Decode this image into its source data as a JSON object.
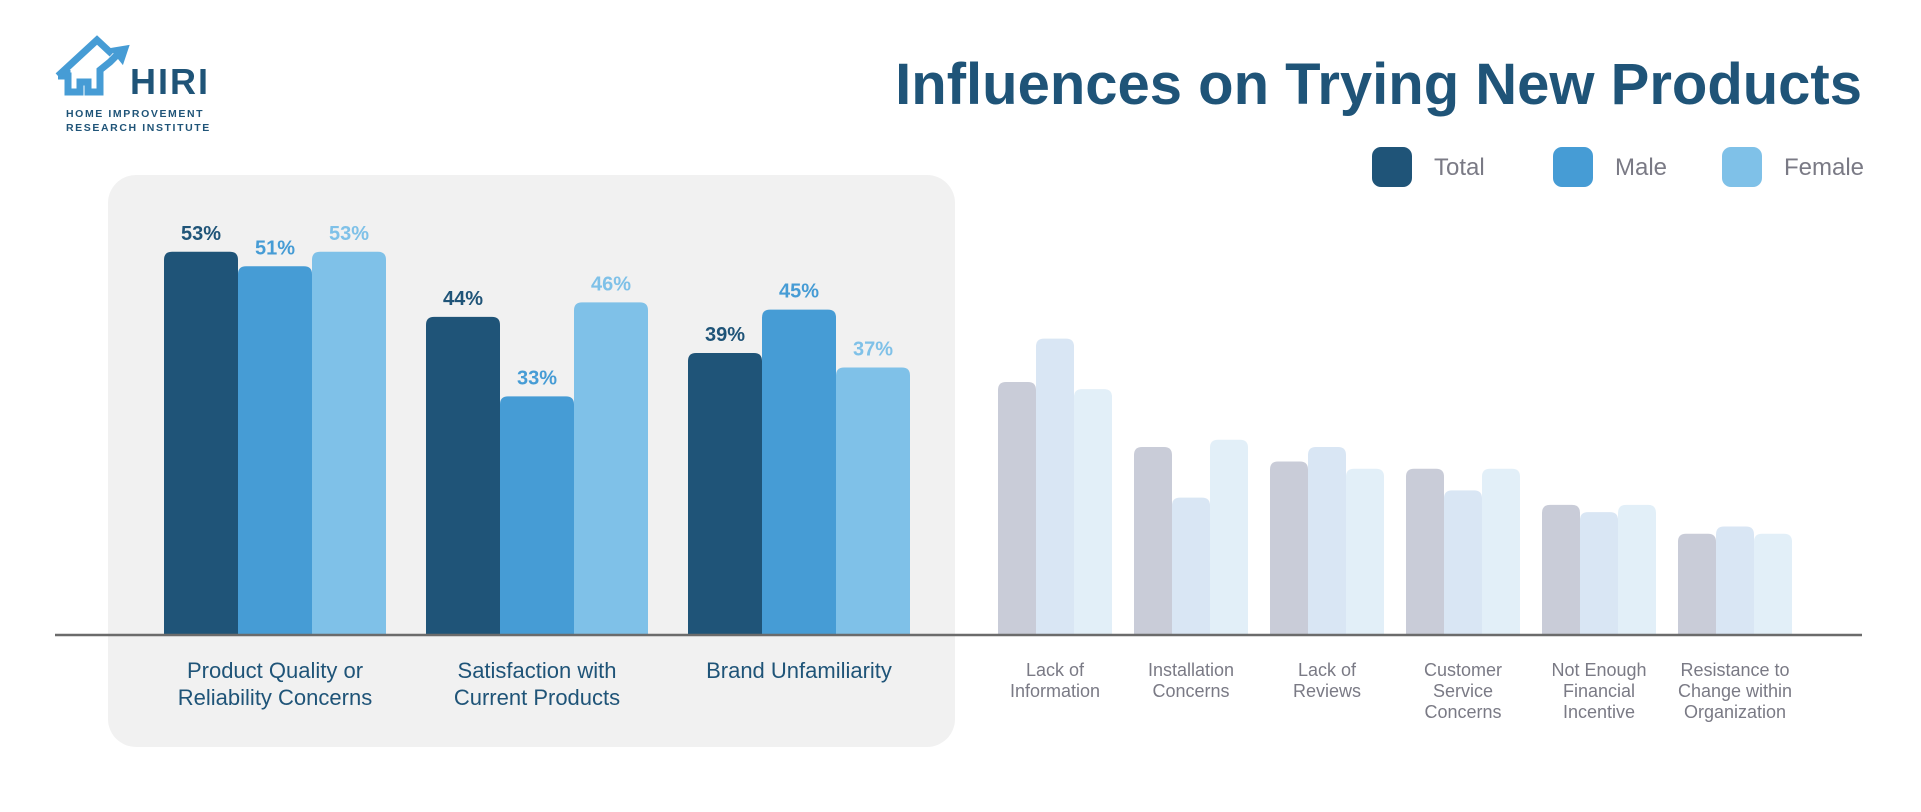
{
  "logo": {
    "name": "HIRI",
    "line1": "HOME IMPROVEMENT",
    "line2": "RESEARCH INSTITUTE"
  },
  "chart_data": {
    "type": "bar",
    "title": "Influences on Trying New Products",
    "xlabel": "",
    "ylabel": "",
    "ylim": [
      0,
      60
    ],
    "grid": false,
    "legend_position": "top-right",
    "categories": [
      [
        "Product Quality or",
        "Reliability Concerns"
      ],
      [
        "Satisfaction with",
        "Current Products"
      ],
      [
        "Brand Unfamiliarity"
      ],
      [
        "Lack of",
        "Information"
      ],
      [
        "Installation",
        "Concerns"
      ],
      [
        "Lack of",
        "Reviews"
      ],
      [
        "Customer",
        "Service",
        "Concerns"
      ],
      [
        "Not Enough",
        "Financial",
        "Incentive"
      ],
      [
        "Resistance to",
        "Change within",
        "Organization"
      ]
    ],
    "highlighted_count": 3,
    "series": [
      {
        "name": "Total",
        "color": "#1f5478",
        "faded_color": "#c9ccd8",
        "values": [
          53,
          44,
          39,
          35,
          26,
          24,
          23,
          18,
          14
        ]
      },
      {
        "name": "Male",
        "color": "#469cd5",
        "faded_color": "#d9e6f4",
        "values": [
          51,
          33,
          45,
          41,
          19,
          26,
          20,
          17,
          15
        ]
      },
      {
        "name": "Female",
        "color": "#7fc1e8",
        "faded_color": "#e2eff8",
        "values": [
          53,
          46,
          37,
          34,
          27,
          23,
          23,
          18,
          14
        ]
      }
    ],
    "value_suffix": "%"
  }
}
